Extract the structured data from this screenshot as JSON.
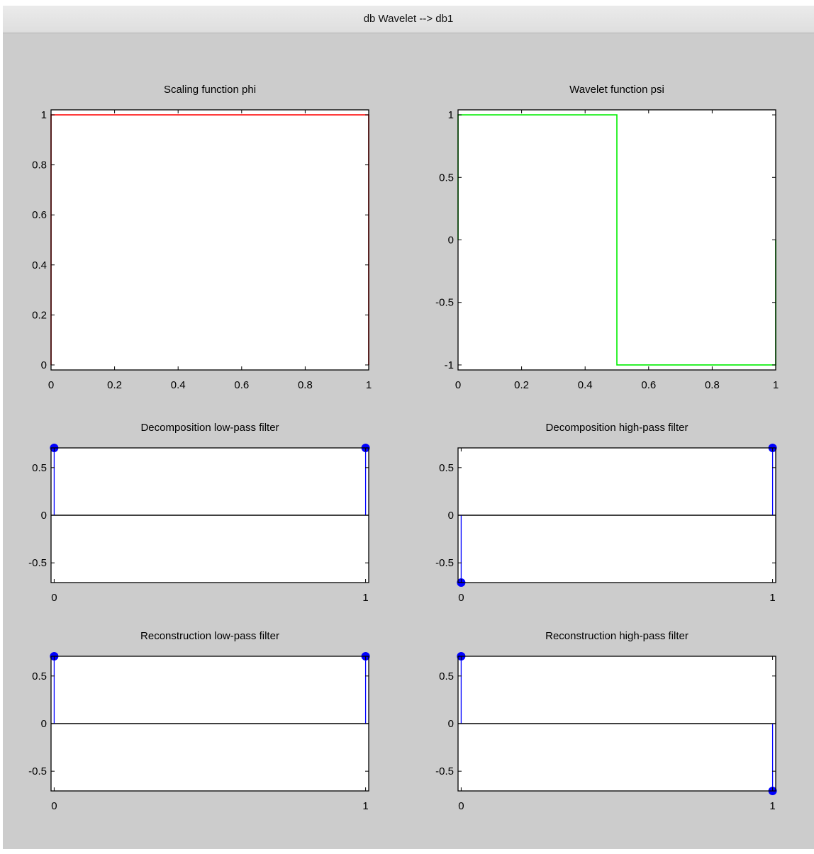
{
  "window": {
    "title": "db Wavelet --> db1"
  },
  "colors": {
    "phi": "#ff0000",
    "psi": "#00ee00",
    "stem": "#0000ff",
    "axis": "#000000",
    "zero_line": "#000000"
  },
  "chart_data": [
    {
      "id": "phi",
      "type": "line",
      "title": "Scaling function phi",
      "x": [
        0,
        0,
        1,
        1
      ],
      "y": [
        0,
        1,
        1,
        0
      ],
      "xlim": [
        0,
        1
      ],
      "ylim": [
        -0.02,
        1.02
      ],
      "xticks": [
        0,
        0.2,
        0.4,
        0.6,
        0.8,
        1
      ],
      "xticklabels": [
        "0",
        "0.2",
        "0.4",
        "0.6",
        "0.8",
        "1"
      ],
      "yticks": [
        0,
        0.2,
        0.4,
        0.6,
        0.8,
        1
      ],
      "yticklabels": [
        "0",
        "0.2",
        "0.4",
        "0.6",
        "0.8",
        "1"
      ],
      "color": "#ff0000"
    },
    {
      "id": "psi",
      "type": "line",
      "title": "Wavelet function psi",
      "x": [
        0,
        0,
        0.5,
        0.5,
        1,
        1
      ],
      "y": [
        0,
        1,
        1,
        -1,
        -1,
        0
      ],
      "xlim": [
        0,
        1
      ],
      "ylim": [
        -1.04,
        1.04
      ],
      "xticks": [
        0,
        0.2,
        0.4,
        0.6,
        0.8,
        1
      ],
      "xticklabels": [
        "0",
        "0.2",
        "0.4",
        "0.6",
        "0.8",
        "1"
      ],
      "yticks": [
        -1,
        -0.5,
        0,
        0.5,
        1
      ],
      "yticklabels": [
        "-1",
        "-0.5",
        "0",
        "0.5",
        "1"
      ],
      "color": "#00ee00"
    },
    {
      "id": "dec-lo",
      "type": "stem",
      "title": "Decomposition low-pass filter",
      "x": [
        0,
        1
      ],
      "y": [
        0.7071,
        0.7071
      ],
      "xlim": [
        -0.01,
        1.01
      ],
      "ylim": [
        -0.7071,
        0.7071
      ],
      "xticks": [
        0,
        1
      ],
      "xticklabels": [
        "0",
        "1"
      ],
      "yticks": [
        -0.5,
        0,
        0.5
      ],
      "yticklabels": [
        "-0.5",
        "0",
        "0.5"
      ],
      "color": "#0000ff"
    },
    {
      "id": "dec-hi",
      "type": "stem",
      "title": "Decomposition high-pass filter",
      "x": [
        0,
        1
      ],
      "y": [
        -0.7071,
        0.7071
      ],
      "xlim": [
        -0.01,
        1.01
      ],
      "ylim": [
        -0.7071,
        0.7071
      ],
      "xticks": [
        0,
        1
      ],
      "xticklabels": [
        "0",
        "1"
      ],
      "yticks": [
        -0.5,
        0,
        0.5
      ],
      "yticklabels": [
        "-0.5",
        "0",
        "0.5"
      ],
      "color": "#0000ff"
    },
    {
      "id": "rec-lo",
      "type": "stem",
      "title": "Reconstruction low-pass filter",
      "x": [
        0,
        1
      ],
      "y": [
        0.7071,
        0.7071
      ],
      "xlim": [
        -0.01,
        1.01
      ],
      "ylim": [
        -0.7071,
        0.7071
      ],
      "xticks": [
        0,
        1
      ],
      "xticklabels": [
        "0",
        "1"
      ],
      "yticks": [
        -0.5,
        0,
        0.5
      ],
      "yticklabels": [
        "-0.5",
        "0",
        "0.5"
      ],
      "color": "#0000ff"
    },
    {
      "id": "rec-hi",
      "type": "stem",
      "title": "Reconstruction high-pass filter",
      "x": [
        0,
        1
      ],
      "y": [
        0.7071,
        -0.7071
      ],
      "xlim": [
        -0.01,
        1.01
      ],
      "ylim": [
        -0.7071,
        0.7071
      ],
      "xticks": [
        0,
        1
      ],
      "xticklabels": [
        "0",
        "1"
      ],
      "yticks": [
        -0.5,
        0,
        0.5
      ],
      "yticklabels": [
        "-0.5",
        "0",
        "0.5"
      ],
      "color": "#0000ff"
    }
  ]
}
